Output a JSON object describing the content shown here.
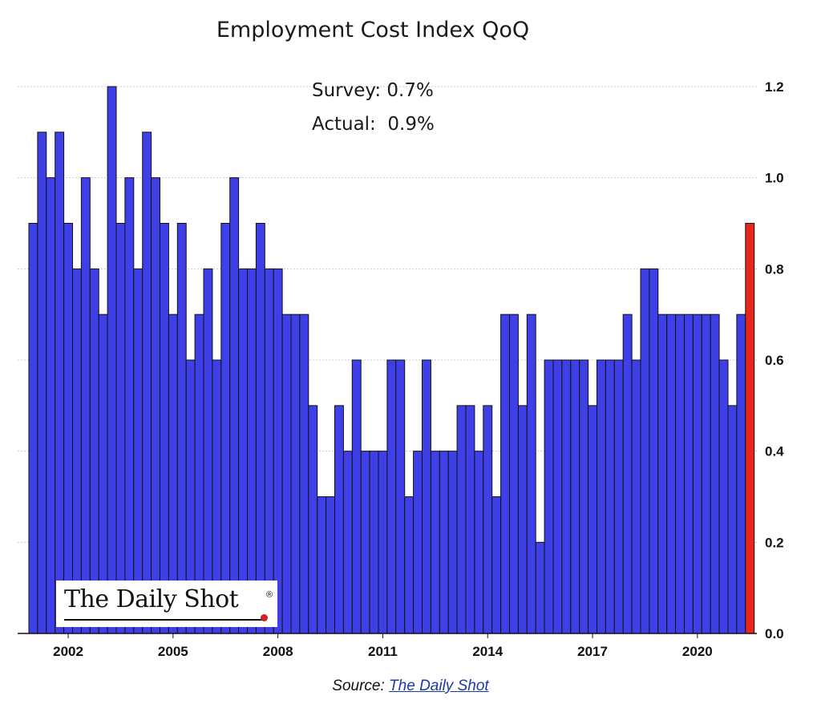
{
  "chart_data": {
    "type": "bar",
    "title": "Employment Cost Index QoQ",
    "x_ticks": [
      "2002",
      "2005",
      "2008",
      "2011",
      "2014",
      "2017",
      "2020"
    ],
    "y_ticks": [
      "0.0",
      "0.2",
      "0.4",
      "0.6",
      "0.8",
      "1.0",
      "1.2"
    ],
    "ylim": [
      0,
      1.2
    ],
    "y_axis_side": "right",
    "grid": "horizontal dotted",
    "first_quarter": "2001 Q1",
    "values": [
      0.9,
      1.1,
      1.0,
      1.1,
      0.9,
      0.8,
      1.0,
      0.8,
      0.7,
      1.2,
      0.9,
      1.0,
      0.8,
      1.1,
      1.0,
      0.9,
      0.7,
      0.9,
      0.6,
      0.7,
      0.8,
      0.6,
      0.9,
      1.0,
      0.8,
      0.8,
      0.9,
      0.8,
      0.8,
      0.7,
      0.7,
      0.7,
      0.5,
      0.3,
      0.3,
      0.5,
      0.4,
      0.6,
      0.4,
      0.4,
      0.4,
      0.6,
      0.6,
      0.3,
      0.4,
      0.6,
      0.4,
      0.4,
      0.4,
      0.5,
      0.5,
      0.4,
      0.5,
      0.3,
      0.7,
      0.7,
      0.5,
      0.7,
      0.2,
      0.6,
      0.6,
      0.6,
      0.6,
      0.6,
      0.5,
      0.6,
      0.6,
      0.6,
      0.7,
      0.6,
      0.8,
      0.8,
      0.7,
      0.7,
      0.7,
      0.7,
      0.7,
      0.7,
      0.7,
      0.6,
      0.5,
      0.7,
      0.9
    ],
    "highlight_last": true,
    "colors": {
      "bar": "#3f3fe8",
      "highlight": "#e8261c",
      "outline": "#111111",
      "grid": "#cccccc"
    },
    "annotations": [
      "Survey: 0.7%",
      "Actual:  0.9%"
    ]
  },
  "logo": {
    "text": "The Daily Shot",
    "reg": "®"
  },
  "source": {
    "prefix": "Source: ",
    "link": "The Daily Shot"
  }
}
